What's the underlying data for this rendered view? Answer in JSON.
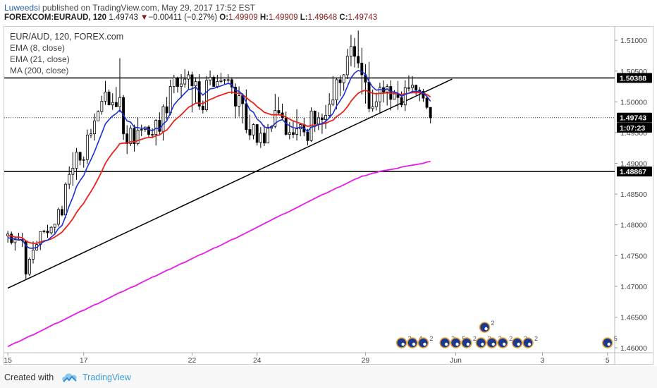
{
  "header": {
    "author": "Luweedsi",
    "published_text": "published on TradingView.com, May 29, 2017 17:52 EST",
    "symbol": "FOREXCOM:EURAUD, 120",
    "last": "1.49743",
    "change_arrow": "▼",
    "change": "−0.00411 (−0.27%)",
    "o_label": "O:",
    "o_value": "1.49909",
    "h_label": "H:",
    "h_value": "1.49909",
    "l_label": "L:",
    "l_value": "1.49648",
    "c_label": "C:",
    "c_value": "1.49743"
  },
  "legend": {
    "title": "EUR/AUD, 120, FOREX.com",
    "ema8": "EMA (8, close)",
    "ema21": "EMA (21, close)",
    "ma200": "MA (200, close)"
  },
  "footer": {
    "created_with": "Created with",
    "brand": "TradingView",
    "logo_icon": "tradingview-cloud-icon"
  },
  "colors": {
    "ema8": "#1c2fd4",
    "ema21": "#e8231b",
    "ma200": "#e51ce8",
    "candles": "#000000",
    "axis_text": "#444444"
  },
  "chart_data": {
    "type": "candlestick",
    "ylim": [
      1.4592,
      1.5122
    ],
    "y_ticks": [
      "1.51000",
      "1.50500",
      "1.50000",
      "1.49500",
      "1.49000",
      "1.48500",
      "1.48000",
      "1.47500",
      "1.47000",
      "1.46500",
      "1.46000"
    ],
    "y_tick_values": [
      1.51,
      1.505,
      1.5,
      1.495,
      1.49,
      1.485,
      1.48,
      1.475,
      1.47,
      1.465,
      1.46
    ],
    "x_ticks": [
      "15",
      "17",
      "22",
      "24",
      "29",
      "Jun",
      "3",
      "5"
    ],
    "x_tick_bars": [
      0,
      21,
      51,
      69,
      99,
      124,
      148,
      166
    ],
    "x_range_bars": [
      -1,
      168
    ],
    "horizontal_lines": [
      {
        "value": 1.50388,
        "label": "1.50388",
        "style": "solid"
      },
      {
        "value": 1.48867,
        "label": "1.48867",
        "style": "solid"
      },
      {
        "value": 1.49743,
        "label": "1.49743",
        "style": "dotted"
      }
    ],
    "price_labels": [
      {
        "text": "1.50388",
        "value": 1.50388
      },
      {
        "text": "1.49743",
        "value": 1.49743
      },
      {
        "text": "1:07:23",
        "value": 1.4958
      },
      {
        "text": "1.48867",
        "value": 1.48867
      }
    ],
    "trendline": [
      [
        0,
        1.4697
      ],
      [
        123,
        1.5037
      ]
    ],
    "candles": [
      [
        1.4782,
        1.479,
        1.4771,
        1.4785
      ],
      [
        1.4785,
        1.4789,
        1.4768,
        1.4771
      ],
      [
        1.4771,
        1.4779,
        1.4758,
        1.4776
      ],
      [
        1.4776,
        1.4787,
        1.4775,
        1.4776
      ],
      [
        1.4776,
        1.4787,
        1.4764,
        1.4774
      ],
      [
        1.4774,
        1.4774,
        1.4712,
        1.472
      ],
      [
        1.472,
        1.4747,
        1.4717,
        1.4744
      ],
      [
        1.4744,
        1.4773,
        1.4737,
        1.4759
      ],
      [
        1.4759,
        1.4774,
        1.4758,
        1.4768
      ],
      [
        1.4768,
        1.4789,
        1.4759,
        1.4789
      ],
      [
        1.4789,
        1.4792,
        1.4786,
        1.479
      ],
      [
        1.479,
        1.48,
        1.4779,
        1.4787
      ],
      [
        1.4787,
        1.4798,
        1.4784,
        1.4796
      ],
      [
        1.4796,
        1.4801,
        1.4786,
        1.4801
      ],
      [
        1.4801,
        1.4828,
        1.4797,
        1.4825
      ],
      [
        1.4825,
        1.4831,
        1.4814,
        1.4816
      ],
      [
        1.4816,
        1.4869,
        1.4811,
        1.4866
      ],
      [
        1.4866,
        1.4895,
        1.4858,
        1.4882
      ],
      [
        1.4882,
        1.4918,
        1.4863,
        1.4892
      ],
      [
        1.4892,
        1.4925,
        1.4873,
        1.4918
      ],
      [
        1.4918,
        1.4918,
        1.4897,
        1.4905
      ],
      [
        1.4905,
        1.4911,
        1.4893,
        1.4906
      ],
      [
        1.4906,
        1.4955,
        1.4899,
        1.4946
      ],
      [
        1.4946,
        1.4956,
        1.4941,
        1.4948
      ],
      [
        1.4948,
        1.4981,
        1.4937,
        1.4969
      ],
      [
        1.4969,
        1.4986,
        1.4969,
        1.4984
      ],
      [
        1.4984,
        1.501,
        1.4979,
        1.5001
      ],
      [
        1.5001,
        1.5034,
        1.4995,
        1.5016
      ],
      [
        1.5016,
        1.502,
        1.4995,
        1.4995
      ],
      [
        1.4995,
        1.5014,
        1.4987,
        1.4999
      ],
      [
        1.4999,
        1.5024,
        1.4992,
        1.4992
      ],
      [
        1.4992,
        1.5071,
        1.4983,
        1.5007
      ],
      [
        1.5007,
        1.5011,
        1.4938,
        1.4948
      ],
      [
        1.4948,
        1.4962,
        1.4915,
        1.4932
      ],
      [
        1.4932,
        1.4962,
        1.4928,
        1.4957
      ],
      [
        1.4957,
        1.4963,
        1.4919,
        1.4932
      ],
      [
        1.4932,
        1.4975,
        1.4929,
        1.4954
      ],
      [
        1.4954,
        1.4963,
        1.4944,
        1.4955
      ],
      [
        1.4955,
        1.4959,
        1.4951,
        1.4959
      ],
      [
        1.4959,
        1.4962,
        1.4943,
        1.4947
      ],
      [
        1.4947,
        1.4957,
        1.4941,
        1.4947
      ],
      [
        1.4947,
        1.4972,
        1.4929,
        1.497
      ],
      [
        1.497,
        1.4983,
        1.4946,
        1.4952
      ],
      [
        1.4952,
        1.4996,
        1.4937,
        1.4992
      ],
      [
        1.4992,
        1.5008,
        1.4971,
        1.4982
      ],
      [
        1.4982,
        1.5036,
        1.4978,
        1.5025
      ],
      [
        1.5025,
        1.5044,
        1.5014,
        1.5039
      ],
      [
        1.5039,
        1.5041,
        1.5015,
        1.5025
      ],
      [
        1.5025,
        1.5045,
        1.5006,
        1.5029
      ],
      [
        1.5029,
        1.5053,
        1.5023,
        1.5037
      ],
      [
        1.5037,
        1.505,
        1.5021,
        1.5044
      ],
      [
        1.5044,
        1.5049,
        1.4983,
        1.5026
      ],
      [
        1.5026,
        1.504,
        1.4997,
        1.5033
      ],
      [
        1.5033,
        1.5045,
        1.4987,
        1.4993
      ],
      [
        1.4993,
        1.5002,
        1.4981,
        1.4987
      ],
      [
        1.4987,
        1.5042,
        1.4984,
        1.5035
      ],
      [
        1.5035,
        1.5051,
        1.5027,
        1.504
      ],
      [
        1.504,
        1.5043,
        1.5025,
        1.5025
      ],
      [
        1.5025,
        1.5044,
        1.5022,
        1.5033
      ],
      [
        1.5033,
        1.5047,
        1.503,
        1.5035
      ],
      [
        1.5035,
        1.5037,
        1.5029,
        1.5036
      ],
      [
        1.5036,
        1.5045,
        1.5031,
        1.5036
      ],
      [
        1.5036,
        1.504,
        1.5013,
        1.5024
      ],
      [
        1.5024,
        1.503,
        1.4973,
        1.4993
      ],
      [
        1.4993,
        1.5025,
        1.4976,
        1.501
      ],
      [
        1.501,
        1.5014,
        1.4965,
        1.4997
      ],
      [
        1.4997,
        1.502,
        1.4949,
        1.4955
      ],
      [
        1.4955,
        1.4979,
        1.4938,
        1.4946
      ],
      [
        1.4946,
        1.4965,
        1.4939,
        1.4963
      ],
      [
        1.4963,
        1.4964,
        1.4929,
        1.4934
      ],
      [
        1.4934,
        1.4959,
        1.4925,
        1.4949
      ],
      [
        1.4949,
        1.4962,
        1.4928,
        1.4933
      ],
      [
        1.4933,
        1.4964,
        1.4933,
        1.4957
      ],
      [
        1.4957,
        1.4962,
        1.4951,
        1.496
      ],
      [
        1.496,
        1.5013,
        1.4957,
        1.4986
      ],
      [
        1.4986,
        1.5008,
        1.4978,
        1.4982
      ],
      [
        1.4982,
        1.4997,
        1.4972,
        1.4974
      ],
      [
        1.4974,
        1.4984,
        1.4945,
        1.4947
      ],
      [
        1.4947,
        1.4967,
        1.4939,
        1.495
      ],
      [
        1.495,
        1.497,
        1.4941,
        1.4947
      ],
      [
        1.4947,
        1.4988,
        1.4937,
        1.4956
      ],
      [
        1.4956,
        1.4965,
        1.4944,
        1.4963
      ],
      [
        1.4963,
        1.4974,
        1.4944,
        1.4951
      ],
      [
        1.4951,
        1.4956,
        1.4929,
        1.4937
      ],
      [
        1.4937,
        1.4991,
        1.4935,
        1.4985
      ],
      [
        1.4985,
        1.4986,
        1.4951,
        1.4964
      ],
      [
        1.4964,
        1.4983,
        1.4954,
        1.4974
      ],
      [
        1.4974,
        1.4981,
        1.4948,
        1.4971
      ],
      [
        1.4971,
        1.4995,
        1.4956,
        1.4978
      ],
      [
        1.4978,
        1.5014,
        1.4975,
        1.4996
      ],
      [
        1.4996,
        1.5042,
        1.4993,
        1.5003
      ],
      [
        1.5003,
        1.5039,
        1.4988,
        1.5036
      ],
      [
        1.5036,
        1.5043,
        1.5009,
        1.5031
      ],
      [
        1.5031,
        1.5045,
        1.5018,
        1.5044
      ],
      [
        1.5044,
        1.5086,
        1.5037,
        1.5074
      ],
      [
        1.5074,
        1.5109,
        1.5058,
        1.509
      ],
      [
        1.509,
        1.5104,
        1.5056,
        1.5074
      ],
      [
        1.5074,
        1.5116,
        1.5055,
        1.5063
      ],
      [
        1.5063,
        1.5088,
        1.5012,
        1.5044
      ],
      [
        1.5044,
        1.5061,
        1.4997,
        1.5032
      ],
      [
        1.5032,
        1.5065,
        1.4983,
        1.4989
      ],
      [
        1.4989,
        1.502,
        1.4984,
        1.4992
      ],
      [
        1.4992,
        1.5015,
        1.4986,
        1.5
      ],
      [
        1.5,
        1.5031,
        1.4981,
        1.5023
      ],
      [
        1.5023,
        1.5035,
        1.4999,
        1.5016
      ],
      [
        1.5016,
        1.5029,
        1.4994,
        1.5025
      ],
      [
        1.5025,
        1.5035,
        1.4986,
        1.5004
      ],
      [
        1.5004,
        1.5019,
        1.5004,
        1.5013
      ],
      [
        1.5013,
        1.5034,
        1.4987,
        1.5007
      ],
      [
        1.5007,
        1.5017,
        1.4991,
        1.4995
      ],
      [
        1.4995,
        1.5035,
        1.4985,
        1.5023
      ],
      [
        1.5023,
        1.5043,
        1.5017,
        1.5023
      ],
      [
        1.5023,
        1.5042,
        1.5014,
        1.5027
      ],
      [
        1.5027,
        1.5028,
        1.5011,
        1.5019
      ],
      [
        1.5019,
        1.5024,
        1.5001,
        1.5017
      ],
      [
        1.5017,
        1.5021,
        1.5,
        1.5006
      ],
      [
        1.5006,
        1.501,
        1.4988,
        1.4991
      ],
      [
        1.4991,
        1.4991,
        1.4965,
        1.4974
      ]
    ],
    "ema8": [
      1.4779,
      1.4778,
      1.4777,
      1.4776,
      1.4776,
      1.4766,
      1.4762,
      1.4762,
      1.4763,
      1.4769,
      1.4773,
      1.4775,
      1.478,
      1.4785,
      1.4794,
      1.4799,
      1.4814,
      1.4831,
      1.4845,
      1.4862,
      1.4872,
      1.488,
      1.4894,
      1.4906,
      1.4919,
      1.4934,
      1.4949,
      1.4964,
      1.4971,
      1.4977,
      1.4981,
      1.4987,
      1.4979,
      1.4969,
      1.4967,
      1.4959,
      1.4958,
      1.4957,
      1.4957,
      1.4955,
      1.4953,
      1.4957,
      1.4956,
      1.4964,
      1.4969,
      1.4982,
      1.4995,
      1.5002,
      1.5008,
      1.5014,
      1.502,
      1.5021,
      1.5024,
      1.5017,
      1.5011,
      1.5016,
      1.5021,
      1.5022,
      1.5024,
      1.5026,
      1.5028,
      1.503,
      1.5028,
      1.5019,
      1.5017,
      1.5012,
      1.4999,
      1.4987,
      1.4983,
      1.4972,
      1.4967,
      1.4959,
      1.4958,
      1.4959,
      1.4965,
      1.4969,
      1.4971,
      1.4965,
      1.4961,
      1.4958,
      1.4957,
      1.4959,
      1.4957,
      1.4952,
      1.4959,
      1.496,
      1.4963,
      1.4965,
      1.4968,
      1.4974,
      1.4981,
      1.4993,
      1.5002,
      1.5011,
      1.5025,
      1.5039,
      1.5047,
      1.5051,
      1.5049,
      1.5045,
      1.5033,
      1.5024,
      1.5019,
      1.502,
      1.5019,
      1.5021,
      1.5017,
      1.5016,
      1.5014,
      1.5009,
      1.5012,
      1.5014,
      1.5017,
      1.5017,
      1.5017,
      1.5014,
      1.5009,
      1.5001
    ],
    "ema21": [
      1.4782,
      1.4782,
      1.478,
      1.478,
      1.4779,
      1.4774,
      1.4771,
      1.477,
      1.477,
      1.4772,
      1.4774,
      1.4775,
      1.4777,
      1.478,
      1.4784,
      1.4788,
      1.4795,
      1.4802,
      1.481,
      1.482,
      1.4828,
      1.4835,
      1.4845,
      1.4854,
      1.4864,
      1.4875,
      1.4887,
      1.49,
      1.4909,
      1.4917,
      1.4924,
      1.4932,
      1.4933,
      1.4933,
      1.4935,
      1.4935,
      1.4937,
      1.4939,
      1.4941,
      1.4942,
      1.4942,
      1.4945,
      1.4946,
      1.4951,
      1.4954,
      1.4961,
      1.4969,
      1.4974,
      1.4979,
      1.4985,
      1.4991,
      1.4994,
      1.4998,
      1.4998,
      1.4997,
      1.5001,
      1.5004,
      1.5006,
      1.5009,
      1.5011,
      1.5013,
      1.5015,
      1.5016,
      1.5014,
      1.5014,
      1.5012,
      1.5007,
      1.5002,
      1.4998,
      1.4992,
      1.4988,
      1.4983,
      1.4981,
      1.4979,
      1.4979,
      1.4979,
      1.4978,
      1.4975,
      1.4972,
      1.4969,
      1.4967,
      1.4965,
      1.4963,
      1.496,
      1.4962,
      1.4962,
      1.4963,
      1.4964,
      1.4965,
      1.4968,
      1.497,
      1.4976,
      1.498,
      1.4985,
      1.4992,
      1.5001,
      1.5008,
      1.5014,
      1.5017,
      1.5019,
      1.5016,
      1.5014,
      1.5013,
      1.5014,
      1.5014,
      1.5015,
      1.5014,
      1.5014,
      1.5013,
      1.5012,
      1.5013,
      1.5014,
      1.5015,
      1.5015,
      1.5015,
      1.5014,
      1.5012,
      1.5008
    ],
    "ma200": [
      1.4602,
      1.4605,
      1.4608,
      1.461,
      1.4613,
      1.4616,
      1.4619,
      1.4621,
      1.4624,
      1.4627,
      1.463,
      1.4633,
      1.4636,
      1.4639,
      1.4641,
      1.4644,
      1.4647,
      1.465,
      1.4653,
      1.4656,
      1.4659,
      1.4661,
      1.4664,
      1.4667,
      1.467,
      1.4672,
      1.4675,
      1.4678,
      1.4681,
      1.4684,
      1.4687,
      1.469,
      1.4692,
      1.4695,
      1.4698,
      1.47,
      1.4703,
      1.4706,
      1.4709,
      1.4712,
      1.4715,
      1.4717,
      1.472,
      1.4723,
      1.4726,
      1.4728,
      1.4731,
      1.4734,
      1.4737,
      1.4739,
      1.4742,
      1.4745,
      1.4748,
      1.4751,
      1.4753,
      1.4756,
      1.4759,
      1.4762,
      1.4764,
      1.4767,
      1.477,
      1.4773,
      1.4776,
      1.4778,
      1.4781,
      1.4784,
      1.4787,
      1.479,
      1.4793,
      1.4796,
      1.4799,
      1.4802,
      1.4805,
      1.4808,
      1.4811,
      1.4814,
      1.4817,
      1.4819,
      1.4822,
      1.4825,
      1.4828,
      1.4831,
      1.4834,
      1.4837,
      1.484,
      1.4843,
      1.4846,
      1.4849,
      1.4851,
      1.4854,
      1.4857,
      1.486,
      1.4862,
      1.4865,
      1.4868,
      1.4871,
      1.4874,
      1.4876,
      1.4879,
      1.488,
      1.4882,
      1.4884,
      1.4885,
      1.4887,
      1.4888,
      1.4889,
      1.489,
      1.4891,
      1.4892,
      1.4894,
      1.4895,
      1.4896,
      1.4897,
      1.4898,
      1.4899,
      1.49,
      1.4902,
      1.4903
    ],
    "events": [
      {
        "bar": 109,
        "label": "2"
      },
      {
        "bar": 112,
        "label": "4"
      },
      {
        "bar": 115,
        "label": "2"
      },
      {
        "bar": 121,
        "label": "2"
      },
      {
        "bar": 124,
        "label": "5"
      },
      {
        "bar": 127,
        "label": "2"
      },
      {
        "bar": 131,
        "label": "3"
      },
      {
        "bar": 134,
        "label": "3"
      },
      {
        "bar": 137,
        "label": "2"
      },
      {
        "bar": 132,
        "label": "2",
        "upper": true
      },
      {
        "bar": 141,
        "label": "2"
      },
      {
        "bar": 144,
        "label": "2"
      },
      {
        "bar": 166,
        "label": "5"
      }
    ]
  }
}
